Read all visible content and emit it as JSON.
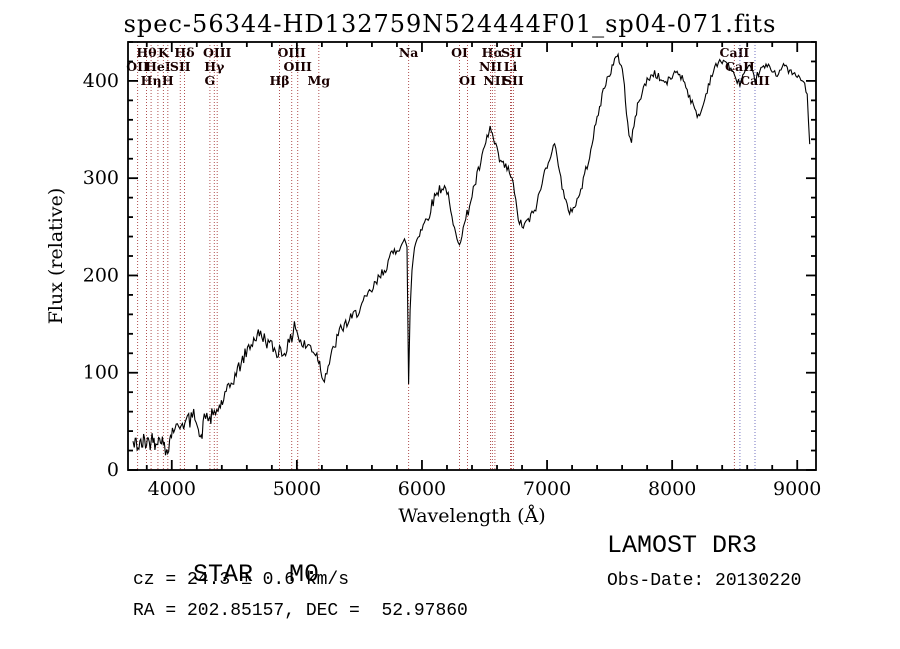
{
  "title": "spec-56344-HD132759N524444F01_sp04-071.fits",
  "footer": {
    "object_class": "STAR",
    "subclass": "M0",
    "cz": "cz = 24.3 ± 0.6 km/s",
    "radec": "RA = 202.85157, DEC =  52.97860",
    "survey": "LAMOST DR3",
    "obs_date": "Obs-Date: 20130220"
  },
  "chart_data": {
    "type": "line",
    "title": "spec-56344-HD132759N524444F01_sp04-071.fits",
    "xlabel": "Wavelength (Å)",
    "ylabel": "Flux (relative)",
    "xlim": [
      3650,
      9150
    ],
    "ylim": [
      0,
      440
    ],
    "x_ticks_major": [
      4000,
      5000,
      6000,
      7000,
      8000,
      9000
    ],
    "y_ticks_major": [
      0,
      100,
      200,
      300,
      400
    ],
    "x_tick_minor_step": 200,
    "y_tick_minor_step": 20,
    "grid": false,
    "line_color_default": "#b05050",
    "line_label_color": "#1a0000",
    "noise": {
      "amplitude_blue": 8,
      "amplitude_red": 3,
      "seed": 42
    },
    "spectral_lines": [
      {
        "label": "Hθ",
        "wl": 3798,
        "row": 0
      },
      {
        "label": "K",
        "wl": 3933,
        "row": 0
      },
      {
        "label": "Hδ",
        "wl": 4102,
        "row": 0
      },
      {
        "label": "OIII",
        "wl": 4363,
        "row": 0
      },
      {
        "label": "OIII",
        "wl": 4959,
        "row": 0
      },
      {
        "label": "Na",
        "wl": 5893,
        "row": 0
      },
      {
        "label": "OI",
        "wl": 6300,
        "row": 0
      },
      {
        "label": "Hα",
        "wl": 6563,
        "row": 0
      },
      {
        "label": "SII",
        "wl": 6716,
        "row": 0
      },
      {
        "label": "CaII",
        "wl": 8498,
        "row": 0
      },
      {
        "label": "OII",
        "wl": 3727,
        "row": 1
      },
      {
        "label": "HeI",
        "wl": 3889,
        "row": 1
      },
      {
        "label": "SII",
        "wl": 4068,
        "row": 1
      },
      {
        "label": "Hγ",
        "wl": 4340,
        "row": 1
      },
      {
        "label": "OIII",
        "wl": 5007,
        "row": 1
      },
      {
        "label": "NII",
        "wl": 6548,
        "row": 1
      },
      {
        "label": "Li",
        "wl": 6708,
        "row": 1
      },
      {
        "label": "CaII",
        "wl": 8542,
        "row": 1,
        "color": "#7070c0"
      },
      {
        "label": "Hη",
        "wl": 3835,
        "row": 2
      },
      {
        "label": "H",
        "wl": 3968,
        "row": 2
      },
      {
        "label": "G",
        "wl": 4305,
        "row": 2
      },
      {
        "label": "Hβ",
        "wl": 4861,
        "row": 2
      },
      {
        "label": "Mg",
        "wl": 5175,
        "row": 2
      },
      {
        "label": "OI",
        "wl": 6364,
        "row": 2
      },
      {
        "label": "NII",
        "wl": 6583,
        "row": 2
      },
      {
        "label": "SII",
        "wl": 6731,
        "row": 2
      },
      {
        "label": "CaII",
        "wl": 8662,
        "row": 2,
        "color": "#7070c0"
      }
    ],
    "series": [
      {
        "name": "spectrum",
        "color": "#000000",
        "points": [
          [
            3690,
            28
          ],
          [
            3700,
            24
          ],
          [
            3715,
            30
          ],
          [
            3730,
            22
          ],
          [
            3745,
            28
          ],
          [
            3760,
            24
          ],
          [
            3775,
            31
          ],
          [
            3790,
            26
          ],
          [
            3805,
            33
          ],
          [
            3820,
            27
          ],
          [
            3835,
            30
          ],
          [
            3850,
            35
          ],
          [
            3865,
            28
          ],
          [
            3880,
            33
          ],
          [
            3895,
            29
          ],
          [
            3910,
            35
          ],
          [
            3925,
            29
          ],
          [
            3940,
            24
          ],
          [
            3950,
            18
          ],
          [
            3960,
            22
          ],
          [
            3975,
            26
          ],
          [
            3990,
            34
          ],
          [
            4005,
            41
          ],
          [
            4025,
            45
          ],
          [
            4045,
            42
          ],
          [
            4065,
            47
          ],
          [
            4085,
            51
          ],
          [
            4105,
            46
          ],
          [
            4125,
            53
          ],
          [
            4145,
            50
          ],
          [
            4165,
            55
          ],
          [
            4185,
            57
          ],
          [
            4205,
            52
          ],
          [
            4220,
            35
          ],
          [
            4235,
            30
          ],
          [
            4250,
            47
          ],
          [
            4270,
            56
          ],
          [
            4290,
            55
          ],
          [
            4305,
            50
          ],
          [
            4320,
            56
          ],
          [
            4340,
            55
          ],
          [
            4360,
            61
          ],
          [
            4380,
            65
          ],
          [
            4405,
            70
          ],
          [
            4435,
            78
          ],
          [
            4465,
            86
          ],
          [
            4495,
            94
          ],
          [
            4525,
            102
          ],
          [
            4555,
            110
          ],
          [
            4585,
            118
          ],
          [
            4615,
            126
          ],
          [
            4645,
            132
          ],
          [
            4675,
            137
          ],
          [
            4700,
            140
          ],
          [
            4730,
            137
          ],
          [
            4760,
            132
          ],
          [
            4790,
            128
          ],
          [
            4820,
            124
          ],
          [
            4840,
            120
          ],
          [
            4861,
            125
          ],
          [
            4880,
            120
          ],
          [
            4900,
            122
          ],
          [
            4920,
            126
          ],
          [
            4940,
            130
          ],
          [
            4960,
            136
          ],
          [
            4980,
            152
          ],
          [
            5000,
            144
          ],
          [
            5020,
            133
          ],
          [
            5040,
            129
          ],
          [
            5060,
            128
          ],
          [
            5080,
            127
          ],
          [
            5100,
            128
          ],
          [
            5120,
            125
          ],
          [
            5140,
            122
          ],
          [
            5160,
            118
          ],
          [
            5175,
            114
          ],
          [
            5190,
            105
          ],
          [
            5210,
            95
          ],
          [
            5230,
            98
          ],
          [
            5250,
            107
          ],
          [
            5270,
            114
          ],
          [
            5290,
            123
          ],
          [
            5310,
            131
          ],
          [
            5330,
            138
          ],
          [
            5350,
            144
          ],
          [
            5380,
            149
          ],
          [
            5410,
            152
          ],
          [
            5440,
            156
          ],
          [
            5470,
            161
          ],
          [
            5500,
            166
          ],
          [
            5530,
            171
          ],
          [
            5560,
            177
          ],
          [
            5590,
            183
          ],
          [
            5620,
            189
          ],
          [
            5650,
            195
          ],
          [
            5680,
            202
          ],
          [
            5710,
            209
          ],
          [
            5740,
            216
          ],
          [
            5770,
            223
          ],
          [
            5800,
            228
          ],
          [
            5830,
            232
          ],
          [
            5860,
            235
          ],
          [
            5880,
            226
          ],
          [
            5893,
            92
          ],
          [
            5905,
            162
          ],
          [
            5920,
            206
          ],
          [
            5940,
            229
          ],
          [
            5960,
            239
          ],
          [
            5990,
            247
          ],
          [
            6020,
            254
          ],
          [
            6050,
            261
          ],
          [
            6080,
            273
          ],
          [
            6110,
            283
          ],
          [
            6140,
            289
          ],
          [
            6170,
            291
          ],
          [
            6200,
            288
          ],
          [
            6220,
            272
          ],
          [
            6240,
            257
          ],
          [
            6260,
            246
          ],
          [
            6280,
            241
          ],
          [
            6300,
            236
          ],
          [
            6320,
            243
          ],
          [
            6340,
            252
          ],
          [
            6360,
            262
          ],
          [
            6380,
            272
          ],
          [
            6400,
            283
          ],
          [
            6430,
            297
          ],
          [
            6460,
            311
          ],
          [
            6490,
            325
          ],
          [
            6520,
            341
          ],
          [
            6545,
            351
          ],
          [
            6563,
            344
          ],
          [
            6580,
            335
          ],
          [
            6600,
            327
          ],
          [
            6620,
            319
          ],
          [
            6640,
            315
          ],
          [
            6660,
            312
          ],
          [
            6680,
            310
          ],
          [
            6700,
            306
          ],
          [
            6720,
            300
          ],
          [
            6740,
            283
          ],
          [
            6760,
            266
          ],
          [
            6780,
            255
          ],
          [
            6800,
            250
          ],
          [
            6830,
            253
          ],
          [
            6860,
            258
          ],
          [
            6890,
            264
          ],
          [
            6920,
            274
          ],
          [
            6950,
            289
          ],
          [
            6980,
            306
          ],
          [
            7010,
            319
          ],
          [
            7040,
            329
          ],
          [
            7060,
            332
          ],
          [
            7080,
            326
          ],
          [
            7100,
            309
          ],
          [
            7120,
            291
          ],
          [
            7140,
            278
          ],
          [
            7160,
            270
          ],
          [
            7180,
            267
          ],
          [
            7200,
            268
          ],
          [
            7230,
            274
          ],
          [
            7260,
            283
          ],
          [
            7290,
            298
          ],
          [
            7320,
            313
          ],
          [
            7350,
            331
          ],
          [
            7380,
            349
          ],
          [
            7410,
            366
          ],
          [
            7440,
            385
          ],
          [
            7470,
            398
          ],
          [
            7500,
            408
          ],
          [
            7530,
            417
          ],
          [
            7560,
            425
          ],
          [
            7585,
            420
          ],
          [
            7610,
            406
          ],
          [
            7635,
            369
          ],
          [
            7655,
            343
          ],
          [
            7675,
            339
          ],
          [
            7695,
            353
          ],
          [
            7715,
            369
          ],
          [
            7740,
            382
          ],
          [
            7770,
            392
          ],
          [
            7800,
            400
          ],
          [
            7830,
            405
          ],
          [
            7860,
            408
          ],
          [
            7890,
            404
          ],
          [
            7920,
            400
          ],
          [
            7950,
            398
          ],
          [
            7980,
            401
          ],
          [
            8010,
            407
          ],
          [
            8040,
            410
          ],
          [
            8070,
            405
          ],
          [
            8100,
            399
          ],
          [
            8130,
            387
          ],
          [
            8160,
            377
          ],
          [
            8190,
            367
          ],
          [
            8220,
            364
          ],
          [
            8250,
            376
          ],
          [
            8280,
            391
          ],
          [
            8310,
            404
          ],
          [
            8340,
            413
          ],
          [
            8370,
            418
          ],
          [
            8400,
            421
          ],
          [
            8430,
            420
          ],
          [
            8460,
            414
          ],
          [
            8498,
            404
          ],
          [
            8520,
            401
          ],
          [
            8542,
            397
          ],
          [
            8565,
            405
          ],
          [
            8590,
            411
          ],
          [
            8620,
            413
          ],
          [
            8645,
            407
          ],
          [
            8662,
            401
          ],
          [
            8690,
            408
          ],
          [
            8720,
            413
          ],
          [
            8750,
            415
          ],
          [
            8780,
            414
          ],
          [
            8810,
            410
          ],
          [
            8840,
            407
          ],
          [
            8870,
            412
          ],
          [
            8900,
            416
          ],
          [
            8930,
            411
          ],
          [
            8960,
            408
          ],
          [
            8990,
            405
          ],
          [
            9020,
            403
          ],
          [
            9050,
            399
          ],
          [
            9080,
            386
          ],
          [
            9100,
            335
          ]
        ]
      }
    ]
  }
}
